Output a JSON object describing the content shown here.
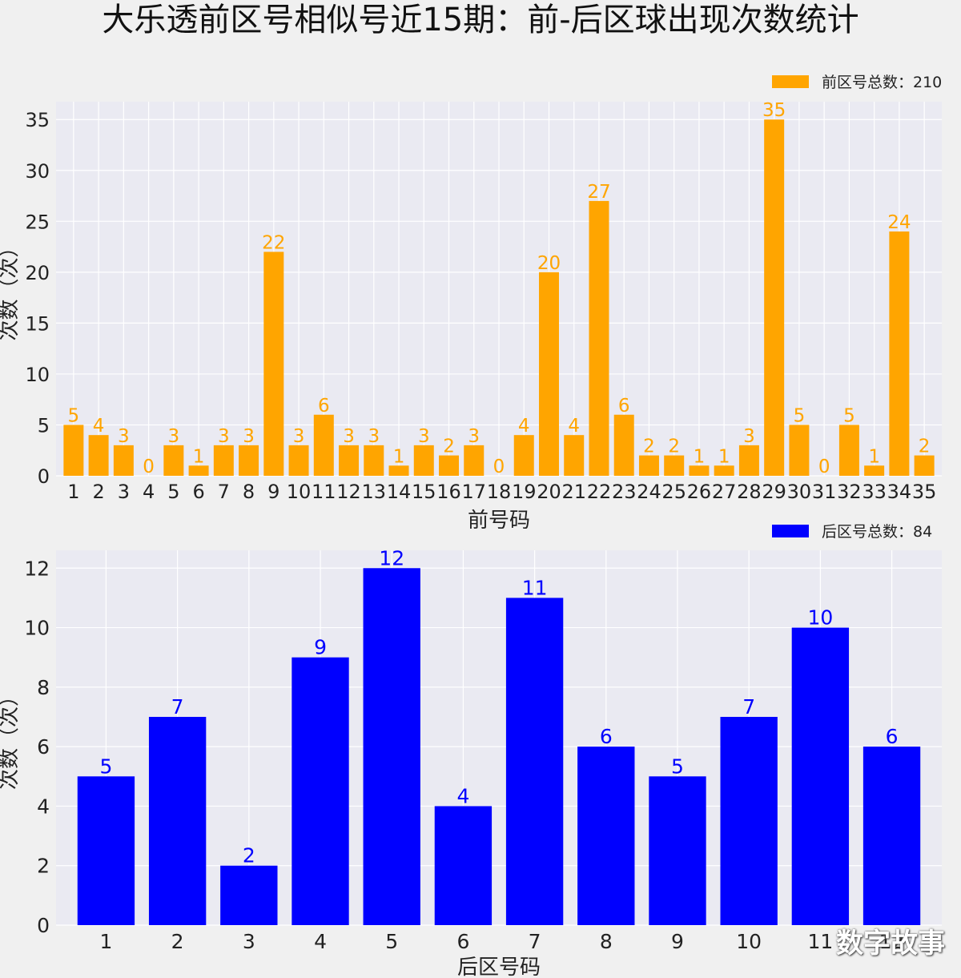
{
  "title": "大乐透前区号相似号近15期：前-后区球出现次数统计",
  "watermark": "数字故事",
  "chart_data": [
    {
      "type": "bar",
      "xlabel": "前号码",
      "ylabel": "次数（次）",
      "ylim": [
        0,
        36.75
      ],
      "yticks": [
        0,
        5,
        10,
        15,
        20,
        25,
        30,
        35
      ],
      "legend": {
        "label": "前区号总数：210",
        "placement": "top-right"
      },
      "color": "#ffa500",
      "grid": true,
      "categories": [
        "1",
        "2",
        "3",
        "4",
        "5",
        "6",
        "7",
        "8",
        "9",
        "10",
        "11",
        "12",
        "13",
        "14",
        "15",
        "16",
        "17",
        "18",
        "19",
        "20",
        "21",
        "22",
        "23",
        "24",
        "25",
        "26",
        "27",
        "28",
        "29",
        "30",
        "31",
        "32",
        "33",
        "34",
        "35"
      ],
      "values": [
        5,
        4,
        3,
        0,
        3,
        1,
        3,
        3,
        22,
        3,
        6,
        3,
        3,
        1,
        3,
        2,
        3,
        0,
        4,
        20,
        4,
        27,
        6,
        2,
        2,
        1,
        1,
        3,
        35,
        5,
        0,
        5,
        1,
        24,
        2
      ]
    },
    {
      "type": "bar",
      "xlabel": "后区号码",
      "ylabel": "次数（次）",
      "ylim": [
        0,
        12.6
      ],
      "yticks": [
        0,
        2,
        4,
        6,
        8,
        10,
        12
      ],
      "legend": {
        "label": "后区号总数：84",
        "placement": "top-right"
      },
      "color": "#0000ff",
      "grid": true,
      "categories": [
        "1",
        "2",
        "3",
        "4",
        "5",
        "6",
        "7",
        "8",
        "9",
        "10",
        "11",
        "12"
      ],
      "values": [
        5,
        7,
        2,
        9,
        12,
        4,
        11,
        6,
        5,
        7,
        10,
        6
      ]
    }
  ]
}
